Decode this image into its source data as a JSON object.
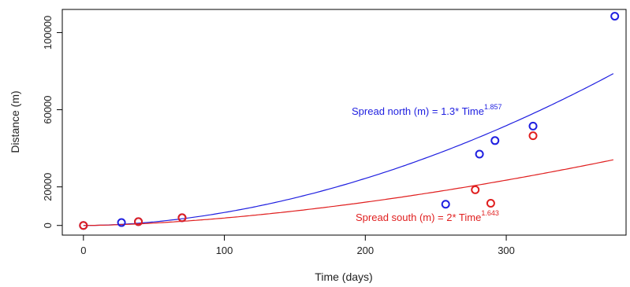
{
  "chart_data": {
    "type": "scatter",
    "title": "",
    "xlabel": "Time (days)",
    "ylabel": "Distance (m)",
    "xlim": [
      -15,
      385
    ],
    "ylim": [
      -5000,
      112000
    ],
    "xticks": [
      0,
      100,
      200,
      300
    ],
    "yticks": [
      0,
      20000,
      60000,
      100000
    ],
    "xtick_labels": [
      "0",
      "100",
      "200",
      "300"
    ],
    "ytick_labels": [
      "0",
      "20000",
      "60000",
      "100000"
    ],
    "grid": false,
    "series": [
      {
        "color": "#1f1fe0",
        "points": [
          {
            "x": 0,
            "y": 0
          },
          {
            "x": 27,
            "y": 1500
          },
          {
            "x": 39,
            "y": 2000
          },
          {
            "x": 70,
            "y": 4000
          },
          {
            "x": 257,
            "y": 11000
          },
          {
            "x": 281,
            "y": 37000
          },
          {
            "x": 292,
            "y": 44000
          },
          {
            "x": 319,
            "y": 51500
          },
          {
            "x": 377,
            "y": 108500
          }
        ]
      },
      {
        "color": "#e01f1f",
        "points": [
          {
            "x": 0,
            "y": 0
          },
          {
            "x": 39,
            "y": 2000
          },
          {
            "x": 70,
            "y": 4000
          },
          {
            "x": 278,
            "y": 18500
          },
          {
            "x": 289,
            "y": 11500
          },
          {
            "x": 319,
            "y": 46500
          }
        ]
      }
    ],
    "fits": [
      {
        "color": "#1f1fe0",
        "coef": 1.3,
        "exponent": 1.857
      },
      {
        "color": "#e01f1f",
        "coef": 2,
        "exponent": 1.643
      }
    ],
    "annotations": [
      {
        "text": "Spread north (m) = 1.3* Time",
        "superscript": "1.857",
        "color": "#1f1fe0"
      },
      {
        "text": "Spread south (m) = 2* Time",
        "superscript": "1.643",
        "color": "#e01f1f"
      }
    ]
  }
}
